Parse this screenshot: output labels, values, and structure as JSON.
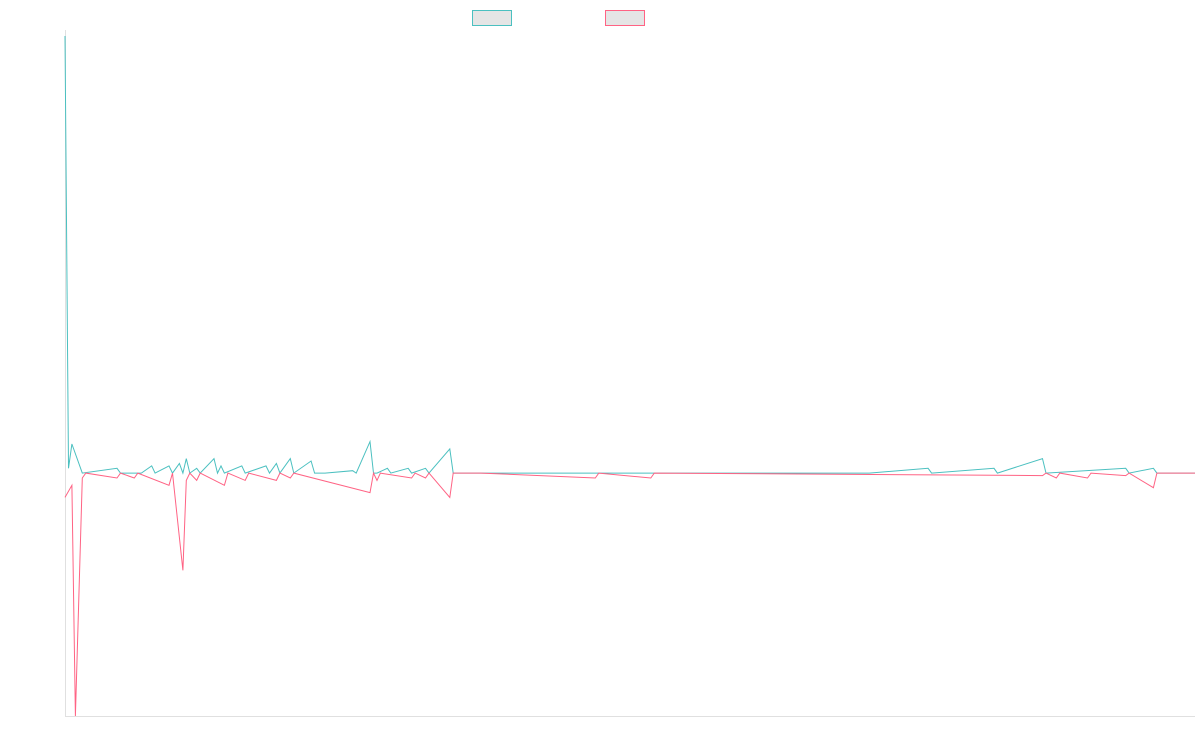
{
  "chart_data": {
    "type": "line",
    "title": "",
    "xlabel": "",
    "ylabel": "",
    "grid": false,
    "legend": {
      "position": "top-center",
      "items": [
        {
          "name": "",
          "color": "#4bc0c0",
          "fill": "#e5e5e5"
        },
        {
          "name": "",
          "color": "#ff6384",
          "fill": "#e5e5e5"
        }
      ]
    },
    "x_range": [
      0,
      326
    ],
    "ylim": [
      -100,
      180
    ],
    "series": [
      {
        "name": "",
        "color": "#4bc0c0",
        "points": [
          [
            0,
            180
          ],
          [
            1,
            2
          ],
          [
            2,
            12
          ],
          [
            5,
            0
          ],
          [
            15,
            2
          ],
          [
            16,
            0
          ],
          [
            20,
            0
          ],
          [
            22,
            0
          ],
          [
            25,
            3
          ],
          [
            26,
            0
          ],
          [
            30,
            3
          ],
          [
            31,
            0
          ],
          [
            33,
            4
          ],
          [
            34,
            0
          ],
          [
            35,
            6
          ],
          [
            36,
            0
          ],
          [
            38,
            2
          ],
          [
            39,
            0
          ],
          [
            43,
            6
          ],
          [
            44,
            0
          ],
          [
            45,
            3
          ],
          [
            46,
            0
          ],
          [
            51,
            3
          ],
          [
            52,
            0
          ],
          [
            58,
            3
          ],
          [
            59,
            0
          ],
          [
            61,
            4
          ],
          [
            62,
            0
          ],
          [
            65,
            6
          ],
          [
            66,
            0
          ],
          [
            71,
            5
          ],
          [
            72,
            0
          ],
          [
            75,
            0
          ],
          [
            83,
            1
          ],
          [
            84,
            0
          ],
          [
            88,
            13
          ],
          [
            89,
            0
          ],
          [
            90,
            0
          ],
          [
            93,
            2
          ],
          [
            94,
            0
          ],
          [
            99,
            2
          ],
          [
            100,
            0
          ],
          [
            104,
            2
          ],
          [
            105,
            0
          ],
          [
            111,
            10
          ],
          [
            112,
            0
          ],
          [
            120,
            0
          ],
          [
            126,
            0
          ],
          [
            128,
            0
          ],
          [
            133,
            0
          ],
          [
            148,
            0
          ],
          [
            152,
            0
          ],
          [
            155,
            0
          ],
          [
            176,
            0
          ],
          [
            185,
            0
          ],
          [
            198,
            0
          ],
          [
            204,
            0
          ],
          [
            211,
            0
          ],
          [
            232,
            0
          ],
          [
            249,
            2
          ],
          [
            250,
            0
          ],
          [
            268,
            2
          ],
          [
            269,
            0
          ],
          [
            282,
            6
          ],
          [
            283,
            0
          ],
          [
            306,
            2
          ],
          [
            307,
            0
          ],
          [
            314,
            2
          ],
          [
            315,
            0
          ],
          [
            326,
            0
          ]
        ]
      },
      {
        "name": "",
        "color": "#ff6384",
        "points": [
          [
            0,
            -10
          ],
          [
            2,
            -5
          ],
          [
            3,
            -100
          ],
          [
            5,
            -2
          ],
          [
            6,
            0
          ],
          [
            15,
            -2
          ],
          [
            16,
            0
          ],
          [
            20,
            -2
          ],
          [
            21,
            0
          ],
          [
            30,
            -5
          ],
          [
            31,
            0
          ],
          [
            34,
            -40
          ],
          [
            35,
            -3
          ],
          [
            36,
            0
          ],
          [
            38,
            -3
          ],
          [
            39,
            0
          ],
          [
            46,
            -5
          ],
          [
            47,
            0
          ],
          [
            52,
            -3
          ],
          [
            53,
            0
          ],
          [
            61,
            -3
          ],
          [
            62,
            0
          ],
          [
            65,
            -2
          ],
          [
            66,
            0
          ],
          [
            88,
            -8
          ],
          [
            89,
            0
          ],
          [
            90,
            -3
          ],
          [
            91,
            0
          ],
          [
            100,
            -2
          ],
          [
            101,
            0
          ],
          [
            104,
            -2
          ],
          [
            105,
            0
          ],
          [
            111,
            -10
          ],
          [
            112,
            0
          ],
          [
            120,
            0
          ],
          [
            153,
            -2
          ],
          [
            154,
            0
          ],
          [
            169,
            -2
          ],
          [
            170,
            0
          ],
          [
            282,
            -1
          ],
          [
            283,
            0
          ],
          [
            286,
            -2
          ],
          [
            287,
            0
          ],
          [
            295,
            -2
          ],
          [
            296,
            0
          ],
          [
            306,
            -1
          ],
          [
            307,
            0
          ],
          [
            314,
            -6
          ],
          [
            315,
            0
          ],
          [
            326,
            0
          ]
        ]
      }
    ]
  }
}
